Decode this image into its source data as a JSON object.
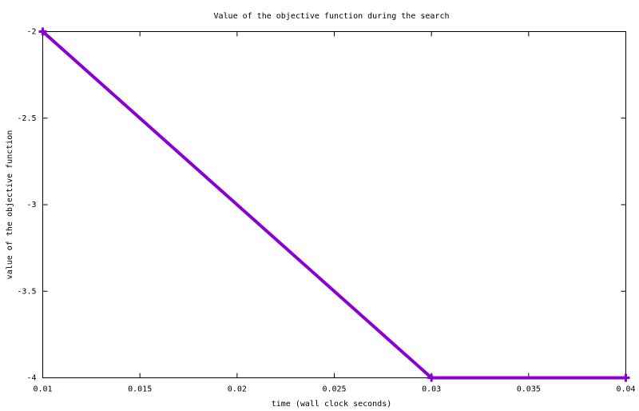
{
  "chart_data": {
    "type": "line",
    "title": "Value of the objective function during the search",
    "x_label": "time (wall clock seconds)",
    "y_label": "value of the objective function",
    "x": [
      0.01,
      0.03,
      0.04
    ],
    "values": [
      -2,
      -4,
      -4
    ],
    "color": "#8a00d4",
    "xlim": [
      0.01,
      0.04
    ],
    "xticks": [
      0.01,
      0.015,
      0.02,
      0.025,
      0.03,
      0.035,
      0.04
    ],
    "ylim": [
      -4,
      -2
    ],
    "yticks": [
      -2,
      -2.5,
      -3,
      -3.5,
      -4
    ]
  }
}
